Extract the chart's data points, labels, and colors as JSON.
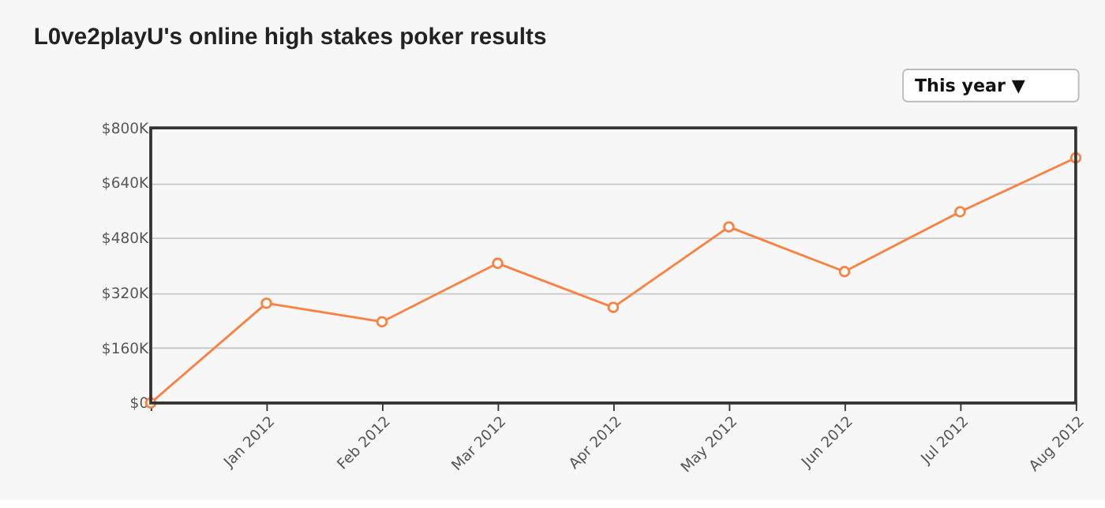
{
  "chart_data": {
    "type": "line",
    "title": "L0ve2playU's online high stakes poker results",
    "annotations": [
      "This year ▼"
    ],
    "categories": [
      null,
      "Jan 2012",
      "Feb 2012",
      "Mar 2012",
      "Apr 2012",
      "May 2012",
      "Jun 2012",
      "Jul 2012",
      "Aug 2012"
    ],
    "series": [
      {
        "color": "#ff7f3f",
        "values": [
          0,
          290,
          236,
          406,
          278,
          512,
          382,
          556,
          713
        ]
      }
    ],
    "ylim": [
      0,
      800
    ],
    "yticks": [
      {
        "value": 0,
        "label": "$0"
      },
      {
        "value": 160,
        "label": "$160K"
      },
      {
        "value": 320,
        "label": "$320K"
      },
      {
        "value": 480,
        "label": "$480K"
      },
      {
        "value": 640,
        "label": "$640K"
      },
      {
        "value": 800,
        "label": "$800K"
      }
    ],
    "grid": "y",
    "marker": "circle",
    "line_style": "solid"
  }
}
